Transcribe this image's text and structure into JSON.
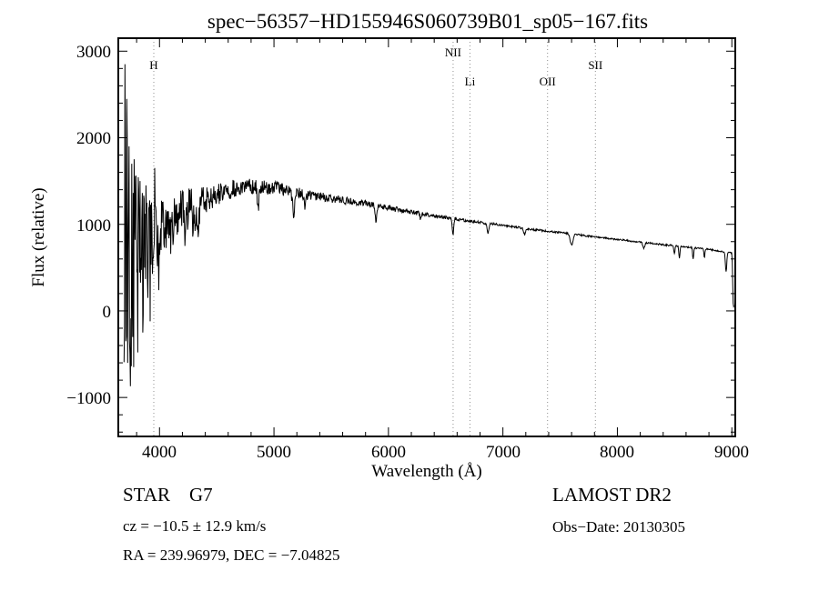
{
  "title": "spec−56357−HD155946S060739B01_sp05−167.fits",
  "chart_data": {
    "type": "line",
    "title": "spec−56357−HD155946S060739B01_sp05−167.fits",
    "xlabel": "Wavelength (Å)",
    "ylabel": "Flux (relative)",
    "xlim": [
      3640,
      9030
    ],
    "ylim": [
      -1450,
      3150
    ],
    "grid": false,
    "line_color": "#000000",
    "marker_line_color": "#909090",
    "xticks": {
      "major": [
        4000,
        5000,
        6000,
        7000,
        8000,
        9000
      ],
      "labels": [
        "4000",
        "5000",
        "6000",
        "7000",
        "8000",
        "9000"
      ],
      "minor_step": 200
    },
    "yticks": {
      "major": [
        -1000,
        0,
        1000,
        2000,
        3000
      ],
      "labels": [
        "−1000",
        "0",
        "1000",
        "2000",
        "3000"
      ],
      "minor_step": 200
    },
    "marker_lines": [
      {
        "label": "H",
        "wavelength": 3950,
        "row": 1
      },
      {
        "label": "NII",
        "wavelength": 6565,
        "row": 0
      },
      {
        "label": "Li",
        "wavelength": 6712,
        "row": 2
      },
      {
        "label": "OII",
        "wavelength": 7390,
        "row": 2
      },
      {
        "label": "SII",
        "wavelength": 7808,
        "row": 1
      }
    ],
    "sample_step": 4,
    "random_seed": 20130305,
    "continuum": [
      [
        3690,
        620
      ],
      [
        3720,
        680
      ],
      [
        3760,
        640
      ],
      [
        3800,
        620
      ],
      [
        3850,
        660
      ],
      [
        3900,
        720
      ],
      [
        3950,
        820
      ],
      [
        4000,
        920
      ],
      [
        4100,
        1060
      ],
      [
        4200,
        1150
      ],
      [
        4300,
        1210
      ],
      [
        4400,
        1300
      ],
      [
        4500,
        1350
      ],
      [
        4600,
        1400
      ],
      [
        4700,
        1430
      ],
      [
        4800,
        1440
      ],
      [
        4900,
        1430
      ],
      [
        5000,
        1420
      ],
      [
        5100,
        1400
      ],
      [
        5250,
        1350
      ],
      [
        5400,
        1320
      ],
      [
        5600,
        1280
      ],
      [
        5800,
        1240
      ],
      [
        6000,
        1190
      ],
      [
        6200,
        1140
      ],
      [
        6400,
        1100
      ],
      [
        6600,
        1060
      ],
      [
        6800,
        1020
      ],
      [
        7000,
        990
      ],
      [
        7200,
        950
      ],
      [
        7400,
        920
      ],
      [
        7600,
        890
      ],
      [
        7800,
        855
      ],
      [
        8000,
        825
      ],
      [
        8200,
        795
      ],
      [
        8400,
        765
      ],
      [
        8600,
        740
      ],
      [
        8800,
        710
      ],
      [
        9000,
        670
      ]
    ],
    "noise_amplitude": [
      [
        3690,
        1500
      ],
      [
        3710,
        1600
      ],
      [
        3750,
        1400
      ],
      [
        3790,
        1100
      ],
      [
        3830,
        900
      ],
      [
        3870,
        700
      ],
      [
        3910,
        550
      ],
      [
        3950,
        450
      ],
      [
        4000,
        360
      ],
      [
        4100,
        300
      ],
      [
        4200,
        260
      ],
      [
        4300,
        230
      ],
      [
        4400,
        170
      ],
      [
        4500,
        130
      ],
      [
        4700,
        100
      ],
      [
        5000,
        80
      ],
      [
        5300,
        60
      ],
      [
        5600,
        45
      ],
      [
        6000,
        32
      ],
      [
        6400,
        22
      ],
      [
        6800,
        15
      ],
      [
        7200,
        12
      ],
      [
        7600,
        10
      ],
      [
        8000,
        9
      ],
      [
        8400,
        10
      ],
      [
        8800,
        9
      ],
      [
        9000,
        8
      ]
    ],
    "absorption_features": [
      [
        4101,
        300,
        10
      ],
      [
        4227,
        220,
        8
      ],
      [
        4305,
        260,
        12
      ],
      [
        4340,
        280,
        9
      ],
      [
        4861,
        260,
        8
      ],
      [
        5172,
        240,
        10
      ],
      [
        5270,
        140,
        8
      ],
      [
        5890,
        170,
        7
      ],
      [
        6280,
        70,
        5
      ],
      [
        6563,
        190,
        6
      ],
      [
        6870,
        110,
        8
      ],
      [
        7190,
        70,
        8
      ],
      [
        7600,
        130,
        12
      ],
      [
        8230,
        70,
        8
      ],
      [
        8498,
        90,
        5
      ],
      [
        8542,
        130,
        5
      ],
      [
        8662,
        130,
        5
      ],
      [
        8760,
        110,
        4
      ],
      [
        8950,
        230,
        6
      ]
    ],
    "spikes": [
      [
        3698,
        2850
      ],
      [
        3706,
        -350
      ],
      [
        3714,
        2450
      ],
      [
        3722,
        -600
      ],
      [
        3734,
        1900
      ],
      [
        3746,
        -870
      ],
      [
        3758,
        1700
      ],
      [
        3774,
        -650
      ],
      [
        3790,
        1550
      ],
      [
        3810,
        -480
      ],
      [
        3830,
        1500
      ],
      [
        3854,
        -250
      ],
      [
        3882,
        1450
      ],
      [
        3918,
        -120
      ],
      [
        3958,
        1650
      ],
      [
        3994,
        240
      ]
    ],
    "tail": [
      [
        9004,
        560
      ],
      [
        9008,
        300
      ],
      [
        9012,
        90
      ],
      [
        9016,
        50
      ],
      [
        9020,
        60
      ]
    ]
  },
  "annotations": {
    "class_line": "STAR    G7",
    "cz_line": "cz = −10.5 ± 12.9 km/s",
    "radec_line": "RA = 239.96979, DEC = −7.04825",
    "survey_line": "LAMOST DR2",
    "obsdate_line": "Obs−Date: 20130305"
  }
}
